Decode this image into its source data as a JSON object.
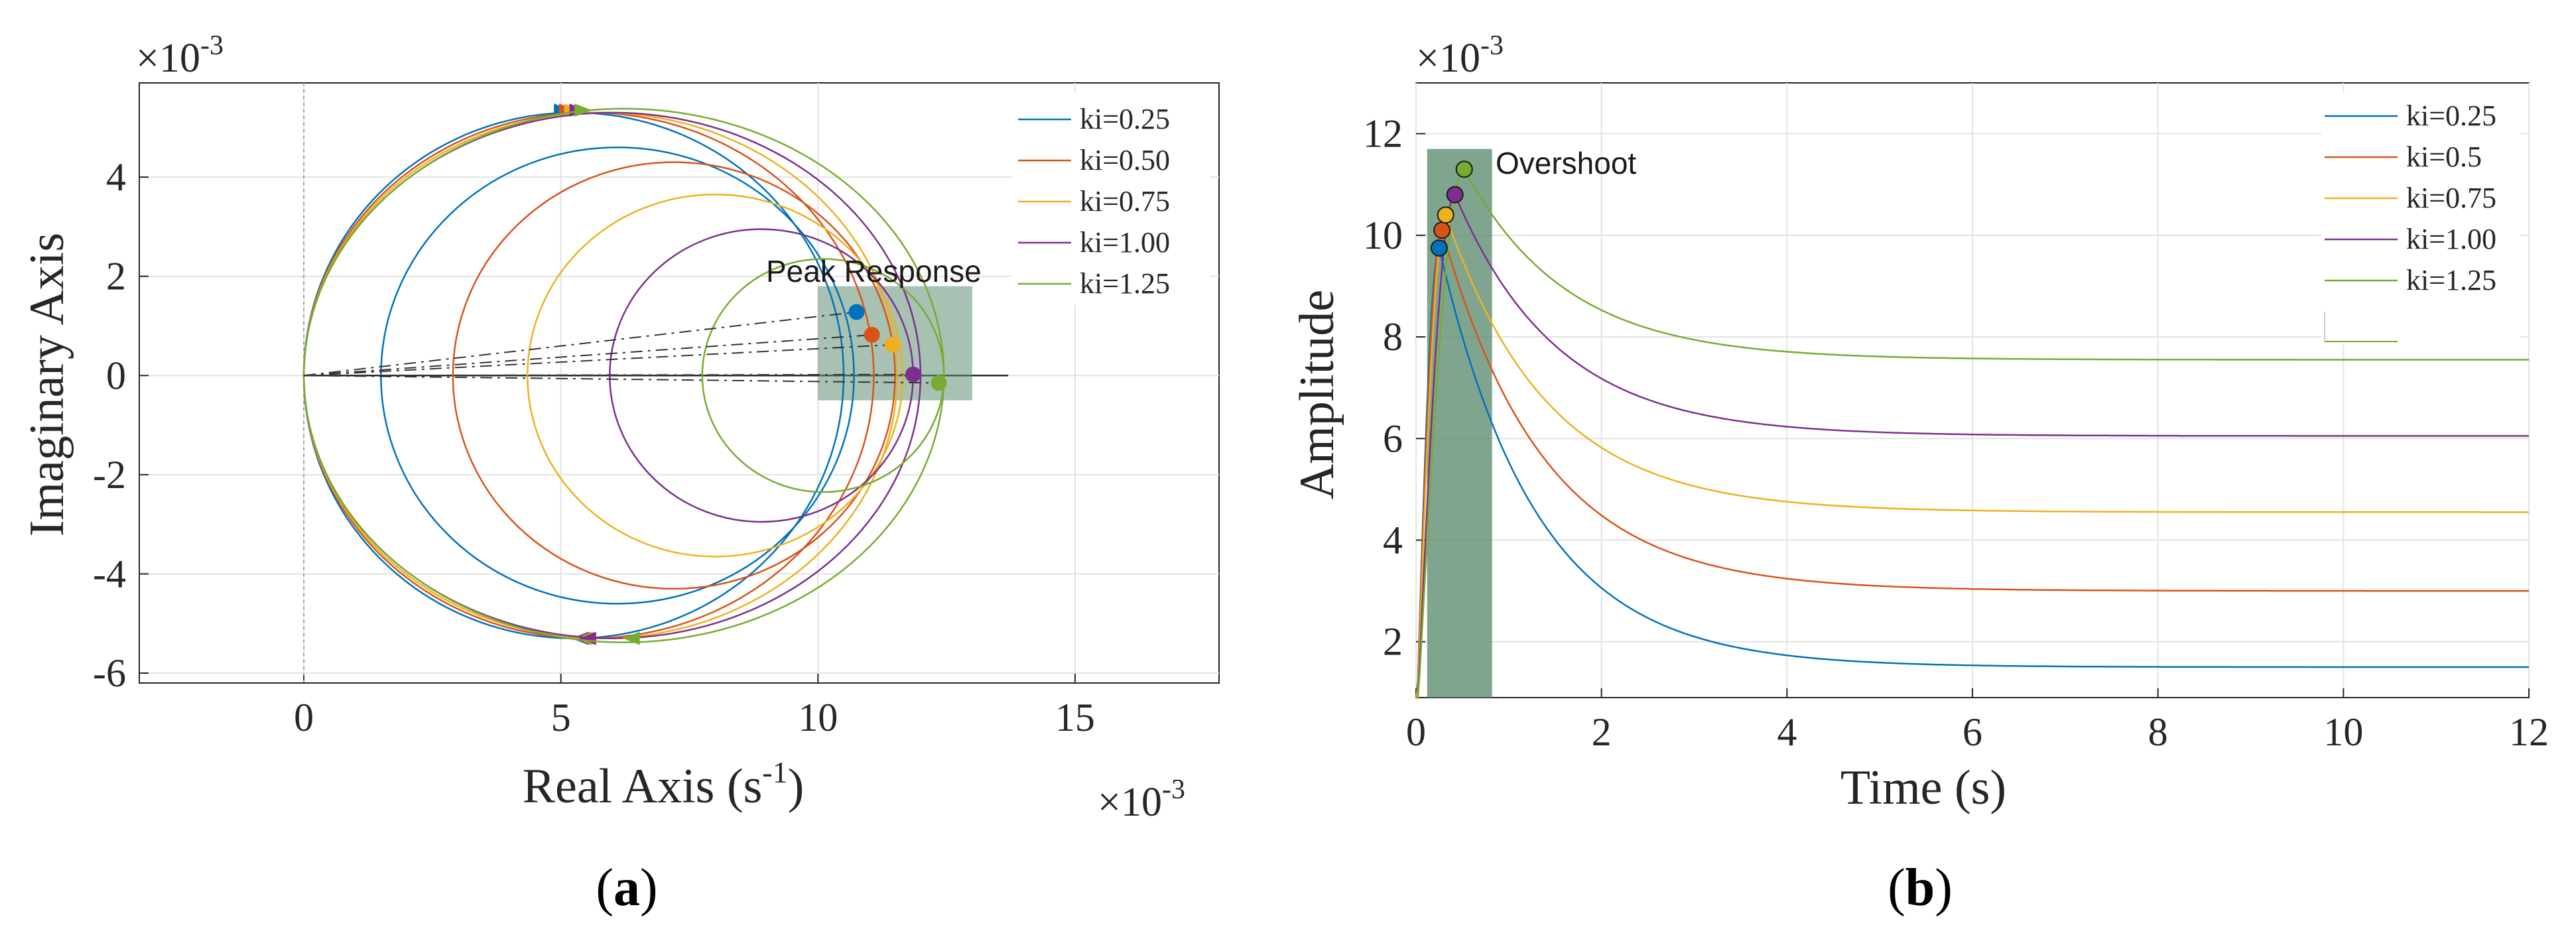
{
  "colors": {
    "series": [
      "#0072BD",
      "#D95319",
      "#EDB120",
      "#7E2F8E",
      "#77AC30"
    ],
    "highlight": "#5f8f73"
  },
  "chart_data": [
    {
      "type": "line",
      "subtype": "nyquist",
      "panel_label_open": "(",
      "panel_label_letter": "a",
      "panel_label_close": ")",
      "xlabel": "Real Axis (s",
      "xlabel_sup": "-1",
      "xlabel_tail": ")",
      "ylabel": "Imaginary Axis",
      "x_exponent_prefix": "×10",
      "x_exponent": "-3",
      "y_exponent_prefix": "×10",
      "y_exponent": "-3",
      "xlim": [
        -3.2,
        17.8
      ],
      "ylim": [
        -6.2,
        5.9
      ],
      "xticks": [
        0,
        5,
        10,
        15
      ],
      "yticks": [
        -6,
        -4,
        -2,
        0,
        2,
        4
      ],
      "xtick_labels": [
        "0",
        "5",
        "10",
        "15"
      ],
      "ytick_labels": [
        "-6",
        "-4",
        "-2",
        "0",
        "2",
        "4"
      ],
      "grid": true,
      "legend_position": "top-right",
      "annotation": "Peak Response",
      "highlight_region": {
        "x": [
          10.0,
          13.0
        ],
        "y": [
          -0.5,
          1.8
        ]
      },
      "series": [
        {
          "name": "ki=0.25",
          "circle_center": [
            6.1,
            0
          ],
          "circle_radius": 4.6,
          "ks": 0.0,
          "peak": [
            10.75,
            1.28
          ],
          "arrow_top": 5.2,
          "arrow_bottom": 5.2
        },
        {
          "name": "ki=0.50",
          "circle_center": [
            7.2,
            0
          ],
          "circle_radius": 4.3,
          "ks": 0.45,
          "peak": [
            11.05,
            0.82
          ],
          "arrow_top": 5.3,
          "arrow_bottom": 5.25
        },
        {
          "name": "ki=0.75",
          "circle_center": [
            8.0,
            0
          ],
          "circle_radius": 3.65,
          "ks": 0.8,
          "peak": [
            11.45,
            0.62
          ],
          "arrow_top": 5.4,
          "arrow_bottom": 5.3
        },
        {
          "name": "ki=1.00",
          "circle_center": [
            8.9,
            0
          ],
          "circle_radius": 2.95,
          "ks": 1.15,
          "peak": [
            11.85,
            0.02
          ],
          "arrow_top": 5.5,
          "arrow_bottom": 5.35
        },
        {
          "name": "ki=1.25",
          "circle_center": [
            10.1,
            0
          ],
          "circle_radius": 2.35,
          "ks": 1.5,
          "peak": [
            12.35,
            -0.15
          ],
          "arrow_top": 5.6,
          "arrow_bottom": 6.2
        }
      ]
    },
    {
      "type": "line",
      "subtype": "step-response",
      "panel_label_open": "(",
      "panel_label_letter": "b",
      "panel_label_close": ")",
      "xlabel": "Time (s)",
      "ylabel": "Amplitude",
      "y_exponent_prefix": "×10",
      "y_exponent": "-3",
      "xlim": [
        0,
        12
      ],
      "ylim": [
        0.9,
        13.0
      ],
      "xticks": [
        0,
        2,
        4,
        6,
        8,
        10,
        12
      ],
      "yticks": [
        2,
        4,
        6,
        8,
        10,
        12
      ],
      "xtick_labels": [
        "0",
        "2",
        "4",
        "6",
        "8",
        "10",
        "12"
      ],
      "ytick_labels": [
        "2",
        "4",
        "6",
        "8",
        "10",
        "12"
      ],
      "grid": true,
      "legend_position": "top-right",
      "annotation": "Overshoot",
      "highlight_region": {
        "x": [
          0.12,
          0.82
        ],
        "y": [
          0.9,
          11.7
        ]
      },
      "series": [
        {
          "name": "ki=0.25",
          "peak_time": 0.25,
          "peak": 9.75,
          "steady": 1.5,
          "tau": 1.05
        },
        {
          "name": "ki=0.5",
          "peak_time": 0.28,
          "peak": 10.1,
          "steady": 3.0,
          "tau": 1.1
        },
        {
          "name": "ki=0.75",
          "peak_time": 0.32,
          "peak": 10.4,
          "steady": 4.55,
          "tau": 1.1
        },
        {
          "name": "ki=1.00",
          "peak_time": 0.42,
          "peak": 10.8,
          "steady": 6.05,
          "tau": 1.1
        },
        {
          "name": "ki=1.25",
          "peak_time": 0.52,
          "peak": 11.3,
          "steady": 7.55,
          "tau": 1.1
        }
      ]
    }
  ]
}
